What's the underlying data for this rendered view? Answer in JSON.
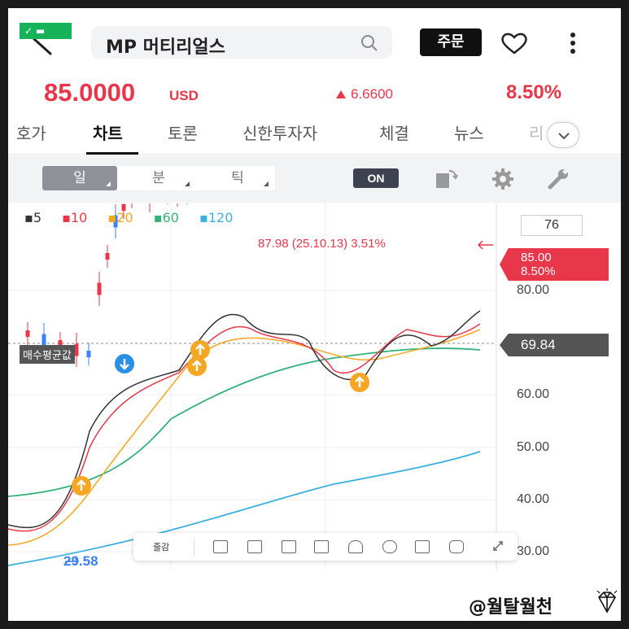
{
  "header": {
    "flag_text": "✓ ▬",
    "title": "MP 머티리얼스",
    "order_label": "주문"
  },
  "quote": {
    "price": "85.0000",
    "currency": "USD",
    "change": "6.6600",
    "change_pct": "8.50%"
  },
  "tabs": [
    {
      "label": "호가"
    },
    {
      "label": "차트"
    },
    {
      "label": "토론"
    },
    {
      "label": "신한투자자"
    },
    {
      "label": "체결"
    },
    {
      "label": "뉴스"
    },
    {
      "label": "리"
    }
  ],
  "toolbar": {
    "periods": [
      {
        "label": "일"
      },
      {
        "label": "분"
      },
      {
        "label": "틱"
      }
    ],
    "on_label": "ON"
  },
  "chart": {
    "legend": [
      {
        "label": "5",
        "color": "#333333"
      },
      {
        "label": "10",
        "color": "#e8364a"
      },
      {
        "label": "20",
        "color": "#f5a623"
      },
      {
        "label": "60",
        "color": "#33b37a"
      },
      {
        "label": "120",
        "color": "#3bb0e0"
      }
    ],
    "axis_box": "76",
    "annotation": "87.98 (25.10.13) 3.51%",
    "current_tag": {
      "price": "85.00",
      "pct": "8.50%"
    },
    "avg_tag": "69.84",
    "avg_label": "매수평균값",
    "low_label": "29.58",
    "drawbar_label": "줄감"
  },
  "chart_data": {
    "type": "candlestick",
    "y_ticks": [
      "80.00",
      "60.00",
      "50.00",
      "40.00",
      "30.00"
    ],
    "ylim": [
      27,
      91
    ],
    "high_annotation": {
      "value": 87.98,
      "date": "25.10.13",
      "pct": "3.51%"
    },
    "current": 85.0,
    "avg_cost": 69.84,
    "low": 29.58
  },
  "watermark": "@월탈월천"
}
